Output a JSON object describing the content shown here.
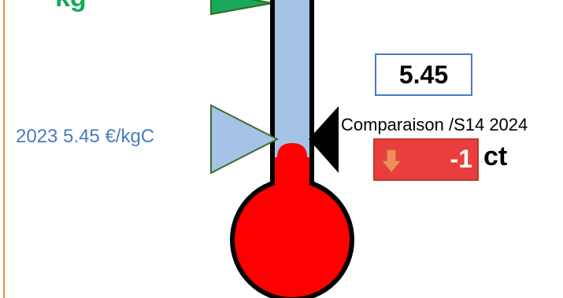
{
  "top_label": "kg",
  "current": {
    "year_label": "2023   5.45 €/kgC",
    "value": "5.45",
    "thermometer_level": 5.45
  },
  "comparison": {
    "label": "Comparaison /S14 2024",
    "change_value": "-1",
    "unit": "ct",
    "direction": "down"
  },
  "colors": {
    "accent_green": "#1aa85c",
    "year_blue": "#4a7ac0",
    "tube_blue": "#a4c3e6",
    "mercury_red": "#ff0000",
    "change_red": "#ea3e3e",
    "frame_orange": "#e8913f"
  }
}
